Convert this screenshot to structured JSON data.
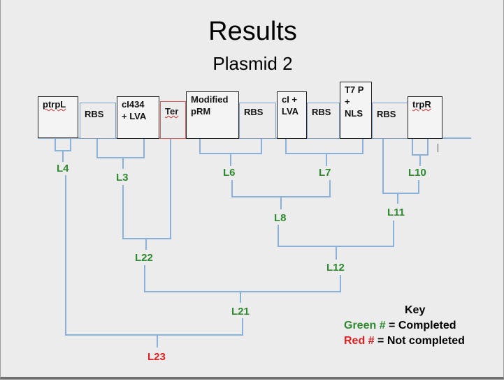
{
  "slide": {
    "title": "Results",
    "subtitle": "Plasmid 2"
  },
  "parts": [
    {
      "id": "ptrpL",
      "label": "ptrpL",
      "style": "black",
      "underline": true
    },
    {
      "id": "rbs1",
      "label": "RBS",
      "style": "blue"
    },
    {
      "id": "cl434",
      "label": "cI434\n+ LVA",
      "style": "black",
      "underline": true
    },
    {
      "id": "ter",
      "label": "Ter",
      "style": "red"
    },
    {
      "id": "prm",
      "label": "Modified\npRM",
      "style": "black"
    },
    {
      "id": "rbs2",
      "label": "RBS",
      "style": "blue"
    },
    {
      "id": "cl",
      "label": "cI +\nLVA",
      "style": "black"
    },
    {
      "id": "rbs3",
      "label": "RBS",
      "style": "blue"
    },
    {
      "id": "t7",
      "label": "T7 P\n+\nNLS",
      "style": "black"
    },
    {
      "id": "rbs4",
      "label": "RBS",
      "style": "blue"
    },
    {
      "id": "trpR",
      "label": "trpR",
      "style": "black",
      "underline": true
    }
  ],
  "ligations": [
    {
      "name": "L4",
      "status": "completed"
    },
    {
      "name": "L3",
      "status": "completed"
    },
    {
      "name": "L6",
      "status": "completed"
    },
    {
      "name": "L7",
      "status": "completed"
    },
    {
      "name": "L10",
      "status": "completed"
    },
    {
      "name": "L8",
      "status": "completed"
    },
    {
      "name": "L11",
      "status": "completed"
    },
    {
      "name": "L22",
      "status": "completed"
    },
    {
      "name": "L12",
      "status": "completed"
    },
    {
      "name": "L21",
      "status": "completed"
    },
    {
      "name": "L23",
      "status": "not_completed"
    }
  ],
  "key": {
    "title": "Key",
    "green_marker": "Green #",
    "green_text": " = Completed",
    "red_marker": "Red #",
    "red_text": " = Not completed"
  },
  "colors": {
    "completed": "#2e8a2e",
    "not_completed": "#e02020",
    "tree_line": "#8ab0dc"
  }
}
